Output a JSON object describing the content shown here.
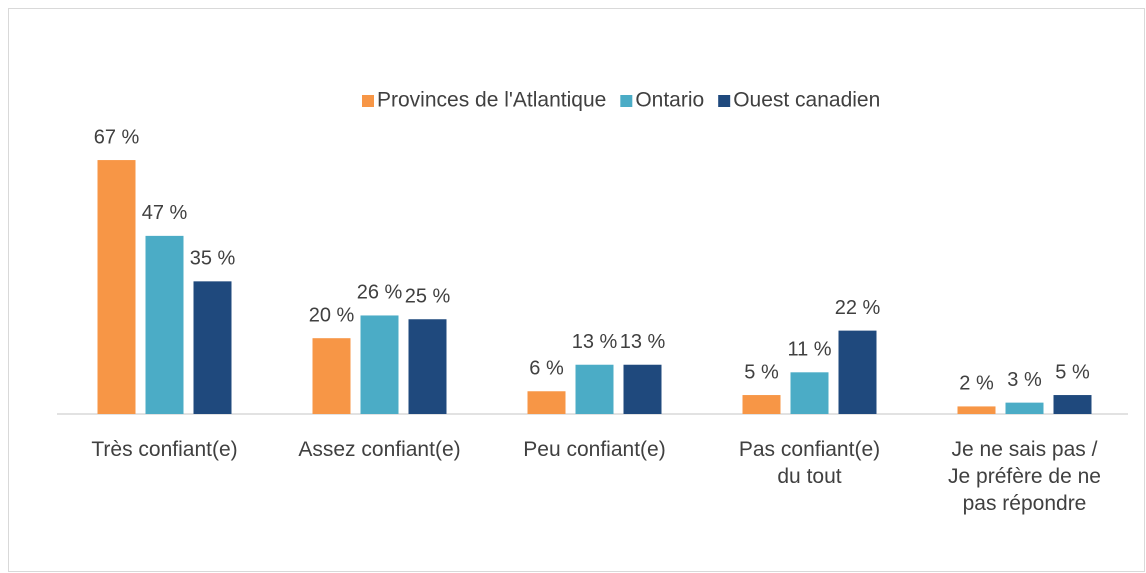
{
  "chart_data": {
    "type": "bar",
    "categories": [
      "Très confiant(e)",
      "Assez confiant(e)",
      "Peu confiant(e)",
      "Pas confiant(e)\ndu tout",
      "Je ne sais pas /\nJe préfère de ne\npas répondre"
    ],
    "series": [
      {
        "name": "Provinces de l'Atlantique",
        "color": "#f79646",
        "values": [
          67,
          20,
          6,
          5,
          2
        ],
        "value_labels": [
          "67 %",
          "20 %",
          "6 %",
          "5 %",
          "2 %"
        ]
      },
      {
        "name": "Ontario",
        "color": "#4bacc6",
        "values": [
          47,
          26,
          13,
          11,
          3
        ],
        "value_labels": [
          "47 %",
          "26 %",
          "13 %",
          "11 %",
          "3 %"
        ]
      },
      {
        "name": "Ouest canadien",
        "color": "#1f497d",
        "values": [
          35,
          25,
          13,
          22,
          5
        ],
        "value_labels": [
          "35 %",
          "25 %",
          "13 %",
          "22 %",
          "5 %"
        ]
      }
    ],
    "ylim": [
      0,
      70
    ],
    "legend": "top"
  }
}
